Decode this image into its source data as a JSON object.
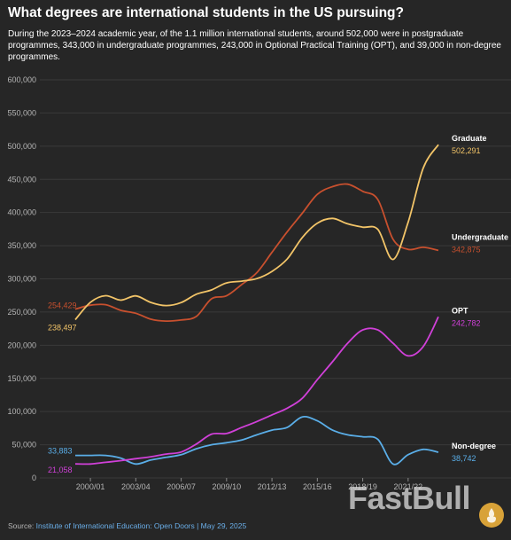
{
  "header": {
    "title": "What degrees are international students in the US pursuing?",
    "subtitle": "During the 2023–2024 academic year, of the 1.1 million international students, around 502,000 were in postgraduate programmes, 343,000 in undergraduate programmes, 243,000 in Optional Practical Training (OPT), and 39,000 in non-degree programmes."
  },
  "footer": {
    "source_prefix": "Source:",
    "source_text": "Institute of International Education: Open Doors | May 29, 2025",
    "watermark": "FastBull"
  },
  "colors": {
    "background": "#262626",
    "grid": "#3a3a3a",
    "graduate": "#f2c468",
    "undergraduate": "#c8502e",
    "opt": "#d040d8",
    "non_degree": "#5aaee8"
  },
  "chart_data": {
    "type": "line",
    "title": "What degrees are international students in the US pursuing?",
    "xlabel": "",
    "ylabel": "",
    "ylim": [
      0,
      600000
    ],
    "yticks": [
      0,
      50000,
      100000,
      150000,
      200000,
      250000,
      300000,
      350000,
      400000,
      450000,
      500000,
      550000,
      600000
    ],
    "ytick_labels": [
      "0",
      "50,000",
      "100,000",
      "150,000",
      "200,000",
      "250,000",
      "300,000",
      "350,000",
      "400,000",
      "450,000",
      "500,000",
      "550,000",
      "600,000"
    ],
    "x": [
      "1999/00",
      "2000/01",
      "2001/02",
      "2002/03",
      "2003/04",
      "2004/05",
      "2005/06",
      "2006/07",
      "2007/08",
      "2008/09",
      "2009/10",
      "2010/11",
      "2011/12",
      "2012/13",
      "2013/14",
      "2014/15",
      "2015/16",
      "2016/17",
      "2017/18",
      "2018/19",
      "2019/20",
      "2020/21",
      "2021/22",
      "2022/23",
      "2023/24"
    ],
    "xtick_labels": [
      "2000/01",
      "2003/04",
      "2006/07",
      "2009/10",
      "2012/13",
      "2015/16",
      "2018/19",
      "2021/22"
    ],
    "xtick_categories": [
      "2000/01",
      "2003/04",
      "2006/07",
      "2009/10",
      "2012/13",
      "2015/16",
      "2018/19",
      "2021/22"
    ],
    "grid": true,
    "series": [
      {
        "key": "graduate",
        "name": "Graduate",
        "start_label": "238,497",
        "end_label": "502,291",
        "values": [
          238497,
          264749,
          274664,
          267876,
          274310,
          264410,
          259717,
          264288,
          276842,
          283329,
          293885,
          296574,
          300430,
          311204,
          329854,
          362228,
          383935,
          391124,
          382953,
          377943,
          374435,
          329272,
          385097,
          467027,
          502291
        ]
      },
      {
        "key": "undergraduate",
        "name": "Undergraduate",
        "start_label": "254,429",
        "end_label": "342,875",
        "values": [
          254429,
          260327,
          261079,
          252625,
          248200,
          239212,
          236342,
          238050,
          243360,
          269874,
          274431,
          291439,
          309342,
          339993,
          370724,
          398824,
          427313,
          439019,
          442746,
          431930,
          419321,
          359787,
          344532,
          347602,
          342875
        ]
      },
      {
        "key": "opt",
        "name": "OPT",
        "start_label": "21,058",
        "end_label": "242,782",
        "values": [
          21058,
          21000,
          23500,
          26000,
          29000,
          32000,
          36000,
          39000,
          51000,
          66000,
          67000,
          76000,
          85000,
          95000,
          105000,
          120000,
          148000,
          175000,
          203000,
          223000,
          223000,
          203000,
          184000,
          198000,
          242782
        ]
      },
      {
        "key": "non_degree",
        "name": "Non-degree",
        "start_label": "33,883",
        "end_label": "38,742",
        "values": [
          33883,
          34000,
          34000,
          30000,
          21000,
          27000,
          31000,
          35000,
          44000,
          50000,
          53000,
          57000,
          65000,
          72000,
          76000,
          92000,
          86000,
          72000,
          65000,
          62000,
          58000,
          21000,
          35000,
          43000,
          38742
        ]
      }
    ]
  }
}
